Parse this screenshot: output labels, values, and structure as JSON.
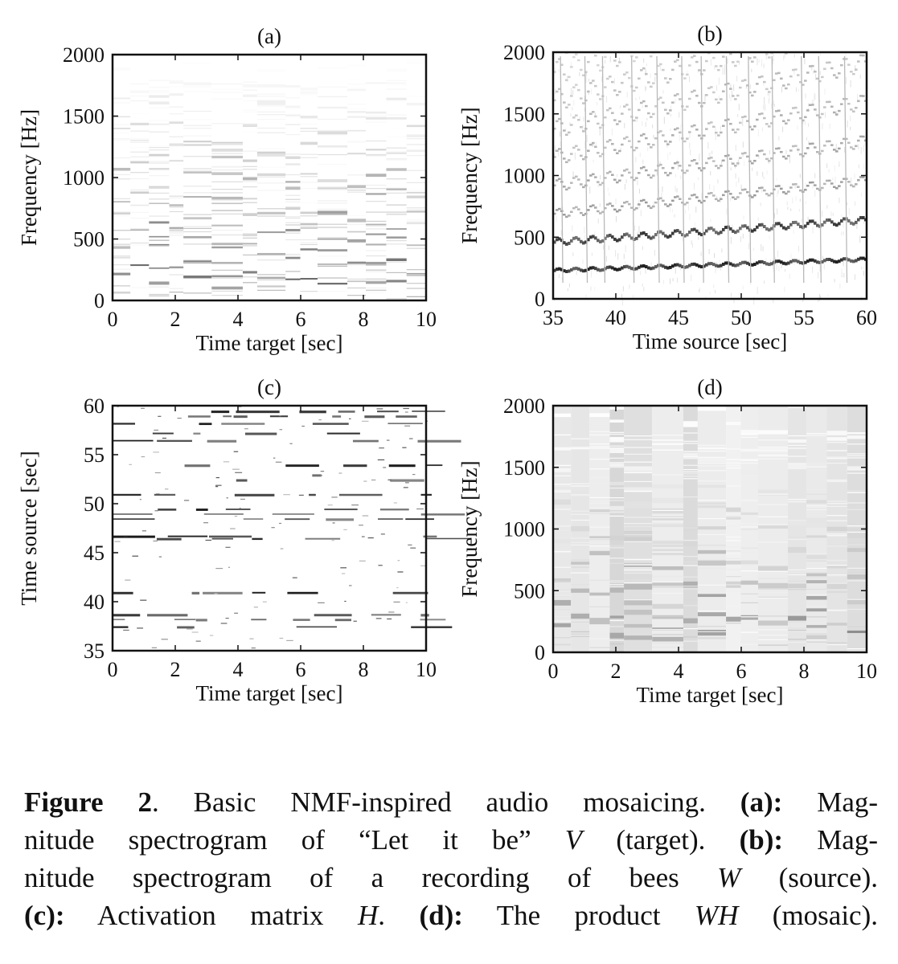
{
  "panels": [
    {
      "id": "a",
      "label": "(a)",
      "kind": "music",
      "xlabel": "Time target [sec]",
      "ylabel": "Frequency [Hz]",
      "xlim": [
        0,
        10
      ],
      "ylim": [
        0,
        2000
      ],
      "xticks": [
        "0",
        "2",
        "4",
        "6",
        "8",
        "10"
      ],
      "yticks": [
        "0",
        "500",
        "1000",
        "1500",
        "2000"
      ]
    },
    {
      "id": "b",
      "label": "(b)",
      "kind": "bees",
      "xlabel": "Time source [sec]",
      "ylabel": "Frequency [Hz]",
      "xlim": [
        35,
        60
      ],
      "ylim": [
        0,
        2000
      ],
      "xticks": [
        "35",
        "40",
        "45",
        "50",
        "55",
        "60"
      ],
      "yticks": [
        "0",
        "500",
        "1000",
        "1500",
        "2000"
      ]
    },
    {
      "id": "c",
      "label": "(c)",
      "kind": "activation",
      "xlabel": "Time target [sec]",
      "ylabel": "Time source [sec]",
      "xlim": [
        0,
        10
      ],
      "ylim": [
        35,
        60
      ],
      "xticks": [
        "0",
        "2",
        "4",
        "6",
        "8",
        "10"
      ],
      "yticks": [
        "35",
        "40",
        "45",
        "50",
        "55",
        "60"
      ]
    },
    {
      "id": "d",
      "label": "(d)",
      "kind": "mosaic",
      "xlabel": "Time target [sec]",
      "ylabel": "Frequency [Hz]",
      "xlim": [
        0,
        10
      ],
      "ylim": [
        0,
        2000
      ],
      "xticks": [
        "0",
        "2",
        "4",
        "6",
        "8",
        "10"
      ],
      "yticks": [
        "0",
        "500",
        "1000",
        "1500",
        "2000"
      ]
    }
  ],
  "caption": {
    "figure_label": "Figure 2",
    "text_1": ". Basic NMF-inspired audio mosaicing. ",
    "a_label": "(a):",
    "text_2": " Mag-",
    "text_3": "nitude spectrogram of “Let it be” ",
    "var_v": "V",
    "text_4": " (target). ",
    "b_label": "(b):",
    "text_5": " Mag-",
    "text_6": "nitude spectrogram of a recording of bees ",
    "var_w": "W",
    "text_7": " (source).",
    "c_label": "(c):",
    "text_8": " Activation matrix ",
    "var_h": "H",
    "text_9": ". ",
    "d_label": "(d):",
    "text_10": " The product ",
    "var_wh": "WH",
    "text_11": " (mosaic)."
  }
}
